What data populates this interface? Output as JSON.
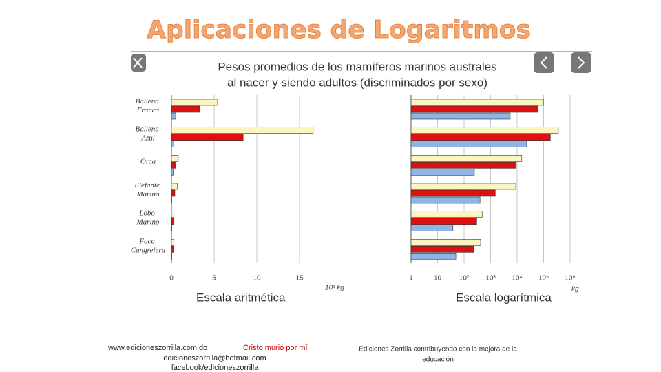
{
  "slide": {
    "title": "Aplicaciones de Logaritmos",
    "figure_title": [
      "Pesos promedios de los mamíferos marinos australes",
      "al nacer y siendo adultos (discriminados por sexo)"
    ],
    "footer": {
      "web": "www.edicioneszorrilla.com.do",
      "motto": "Cristo murió por mí",
      "email": "edicioneszorrilla@hotmail.com",
      "facebook": "facebook/edicioneszorrilla",
      "note": [
        "Ediciones Zorrilla contribuyendo con la mejora de la",
        "educación"
      ]
    }
  },
  "chart_data": [
    {
      "type": "hbar",
      "xlabel": "Escala aritmética",
      "xunit": "10³ kg",
      "categories": [
        "Ballena Franca",
        "Ballena Azul",
        "Orca",
        "Elefante Marino",
        "Lobo Marino",
        "Foca Cangrejera"
      ],
      "series": [
        {
          "color": "#fbf6c0",
          "values": [
            5.4,
            16.6,
            0.8,
            0.7,
            0.3,
            0.3
          ]
        },
        {
          "color": "#e01010",
          "values": [
            3.3,
            8.4,
            0.5,
            0.4,
            0.3,
            0.3
          ]
        },
        {
          "color": "#8fb4e8",
          "values": [
            0.5,
            0.3,
            0.2,
            0.05,
            0.05,
            0.05
          ]
        }
      ],
      "xlim": [
        0,
        17
      ],
      "xticks": [
        0,
        5,
        10,
        15
      ],
      "grid": true
    },
    {
      "type": "hbar",
      "xlabel": "Escala logarítmica",
      "xunit": "kg",
      "log": true,
      "categories": [
        null,
        null,
        null,
        null,
        null,
        null
      ],
      "series": [
        {
          "color": "#fbf6c0",
          "values": [
            98000,
            360000,
            15000,
            8900,
            480,
            420
          ]
        },
        {
          "color": "#e01010",
          "values": [
            60000,
            180000,
            9300,
            1500,
            300,
            230
          ]
        },
        {
          "color": "#8fb4e8",
          "values": [
            5500,
            23000,
            245,
            400,
            38,
            49
          ]
        }
      ],
      "xlim": [
        1,
        2000000
      ],
      "xticks": [
        1,
        10,
        {
          "value": 100,
          "label": "10²"
        },
        {
          "value": 1000,
          "label": "10³"
        },
        {
          "value": 10000,
          "label": "10⁴"
        },
        {
          "value": 100000,
          "label": "10⁵"
        },
        {
          "value": 1000000,
          "label": "10⁶"
        }
      ],
      "grid": true
    }
  ]
}
